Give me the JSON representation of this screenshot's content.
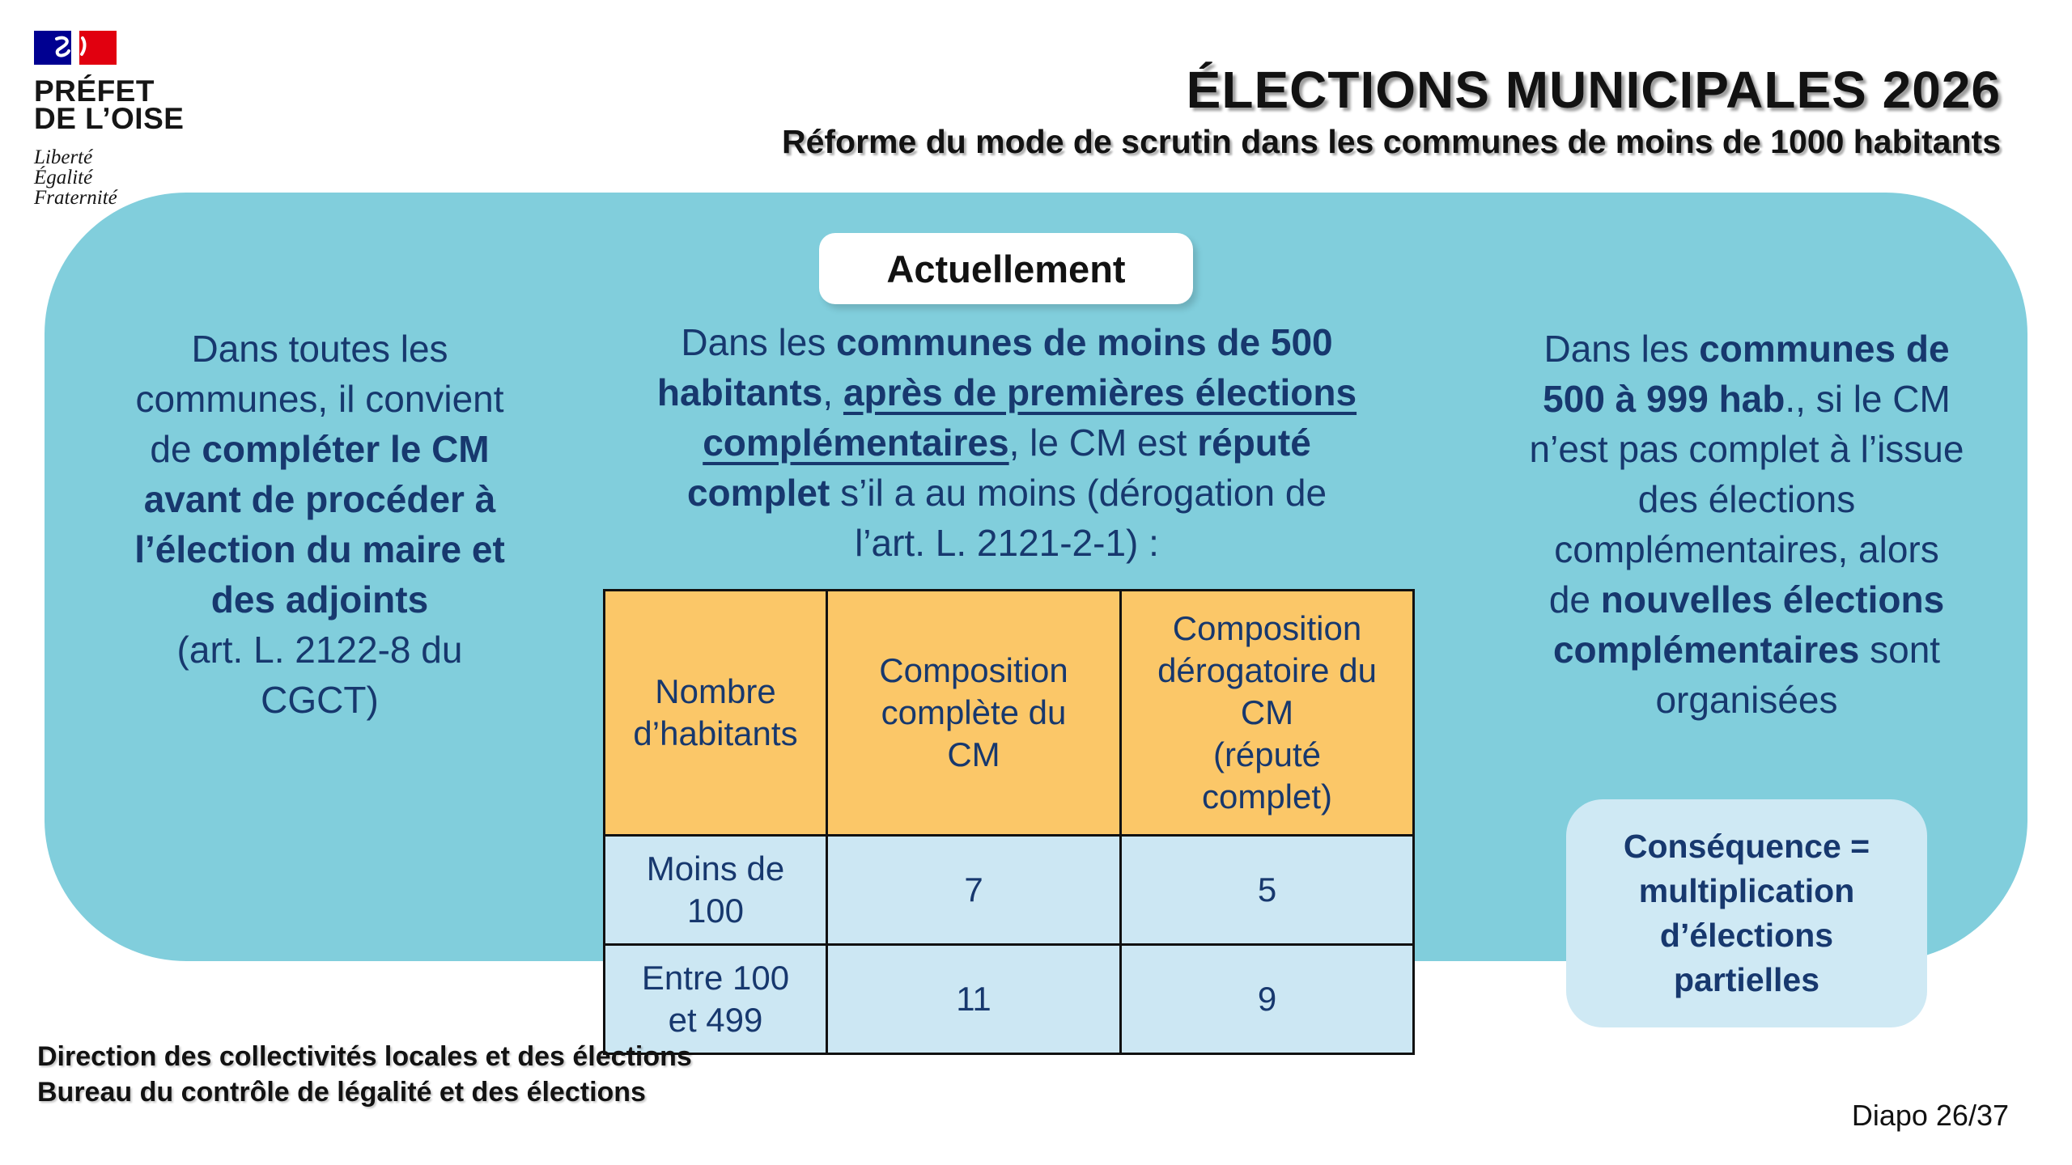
{
  "logo": {
    "ministry_line1": "PRÉFET",
    "ministry_line2": "DE L’OISE",
    "motto": [
      "Liberté",
      "Égalité",
      "Fraternité"
    ],
    "flag_blue": "#000091",
    "flag_red": "#E1000F"
  },
  "header": {
    "title": "ÉLECTIONS MUNICIPALES 2026",
    "subtitle": "Réforme du mode de scrutin dans les communes de moins de 1000 habitants"
  },
  "panel": {
    "badge": "Actuellement",
    "background_color": "#81CEDC",
    "text_color": "#17386E",
    "left_paragraph": [
      {
        "text": "Dans toutes les\ncommunes, il convient\nde "
      },
      {
        "text": "compléter le CM\navant de procéder à\nl’élection du maire et\ndes adjoints",
        "bold": true
      },
      {
        "text": "\n(art. L. 2122-8 du\nCGCT)"
      }
    ],
    "middle_paragraph": [
      {
        "text": "Dans les "
      },
      {
        "text": "communes de moins de 500\nhabitants",
        "bold": true
      },
      {
        "text": ", "
      },
      {
        "text": "après de premières élections\ncomplémentaires",
        "bold": true,
        "underline": true
      },
      {
        "text": ", le CM est "
      },
      {
        "text": "réputé\ncomplet",
        "bold": true
      },
      {
        "text": " s’il a au moins (dérogation de\nl’art. L. 2121-2-1) :"
      }
    ],
    "right_paragraph": [
      {
        "text": "Dans les "
      },
      {
        "text": "communes de\n500 à 999 hab",
        "bold": true
      },
      {
        "text": "., si le CM\nn’est pas complet à l’issue\ndes élections\ncomplémentaires, alors\nde "
      },
      {
        "text": "nouvelles élections\ncomplémentaires",
        "bold": true
      },
      {
        "text": " sont\norganisées"
      }
    ],
    "consequence": "Conséquence =\nmultiplication\nd’élections\npartielles"
  },
  "table": {
    "header_color": "#FBC768",
    "body_color": "#CCE7F3",
    "headers": [
      "Nombre\nd’habitants",
      "Composition\ncomplète du\nCM",
      "Composition\ndérogatoire du\nCM\n(réputé\ncomplet)"
    ],
    "rows": [
      {
        "cells": [
          "Moins de\n100",
          "7",
          "5"
        ]
      },
      {
        "cells": [
          "Entre 100\net 499",
          "11",
          "9"
        ]
      }
    ]
  },
  "footer": {
    "line1": "Direction des collectivités locales et des élections",
    "line2": "Bureau du contrôle de légalité et des élections",
    "slide_number": "Diapo 26/37"
  }
}
